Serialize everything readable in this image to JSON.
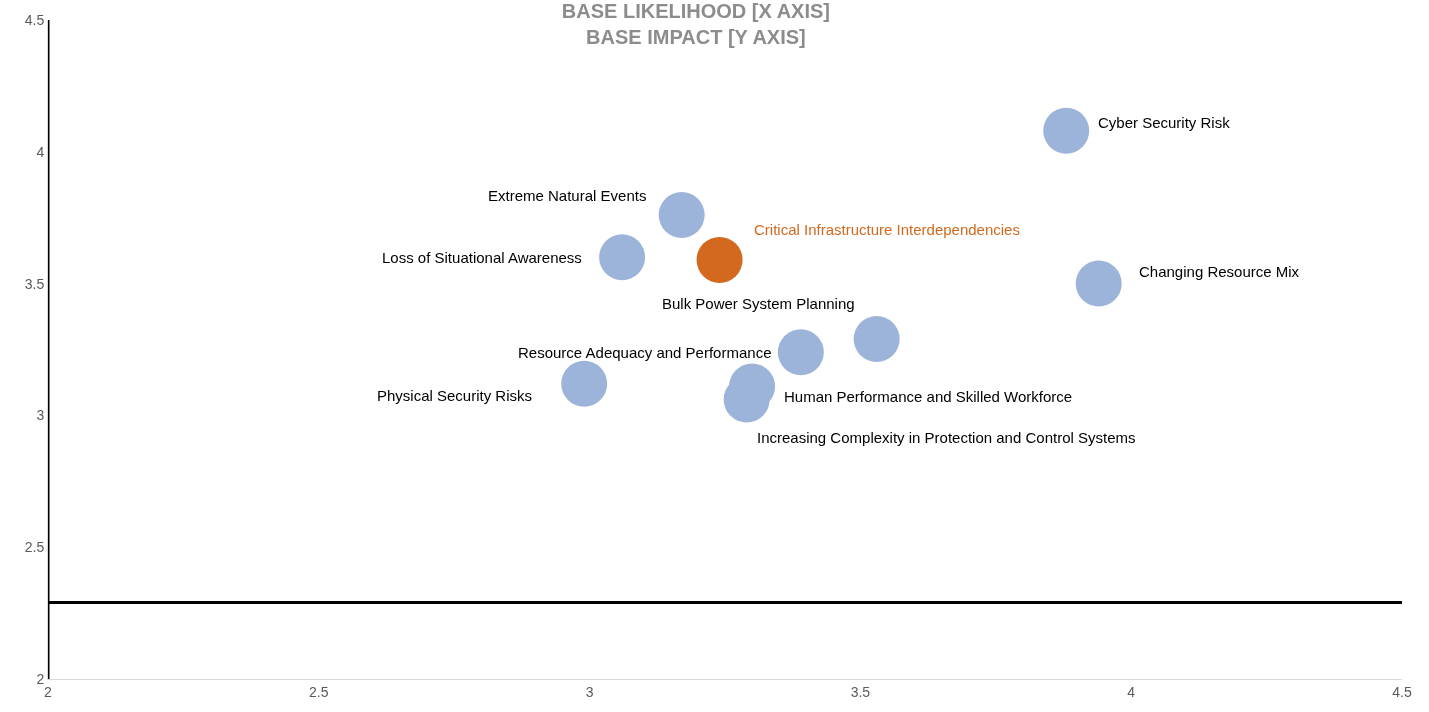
{
  "chart_data": {
    "type": "scatter",
    "title": "BASE LIKELIHOOD [X AXIS]\nBASE IMPACT [Y AXIS]",
    "series": [
      {
        "name": "Cyber Security Risk",
        "color": "#9db4da",
        "x": [
          3.88
        ],
        "values": [
          4.08
        ]
      },
      {
        "name": "Extreme Natural Events",
        "color": "#9db4da",
        "x": [
          3.17
        ],
        "values": [
          3.76
        ]
      },
      {
        "name": "Critical Infrastructure Interdependencies",
        "color": "#d2691e",
        "x": [
          3.24
        ],
        "values": [
          3.59
        ]
      },
      {
        "name": "Loss of Situational Awareness",
        "color": "#9db4da",
        "x": [
          3.06
        ],
        "values": [
          3.6
        ]
      },
      {
        "name": "Changing Resource Mix",
        "color": "#9db4da",
        "x": [
          3.94
        ],
        "values": [
          3.5
        ]
      },
      {
        "name": "Bulk Power System Planning",
        "color": "#9db4da",
        "x": [
          3.53
        ],
        "values": [
          3.29
        ]
      },
      {
        "name": "Resource Adequacy and Performance",
        "color": "#9db4da",
        "x": [
          3.39
        ],
        "values": [
          3.24
        ]
      },
      {
        "name": "Physical Security Risks",
        "color": "#9db4da",
        "x": [
          2.99
        ],
        "values": [
          3.12
        ]
      },
      {
        "name": "Human Performance and Skilled Workforce",
        "color": "#9db4da",
        "x": [
          3.3
        ],
        "values": [
          3.11
        ]
      },
      {
        "name": "Increasing Complexity in Protection and Control Systems",
        "color": "#9db4da",
        "x": [
          3.29
        ],
        "values": [
          3.06
        ]
      }
    ],
    "xlim": [
      2,
      4.5
    ],
    "xticks": [
      2,
      2.5,
      3,
      3.5,
      4,
      4.5
    ],
    "ylim": [
      2,
      4.5
    ],
    "yticks": [
      2,
      2.5,
      3,
      3.5,
      4,
      4.5
    ],
    "marker": "circle",
    "legend": false,
    "ref_lines": [
      {
        "axis": "y",
        "value": 2.29,
        "color": "#000000"
      },
      {
        "axis": "x",
        "value": 2,
        "color": "#000000"
      }
    ]
  }
}
